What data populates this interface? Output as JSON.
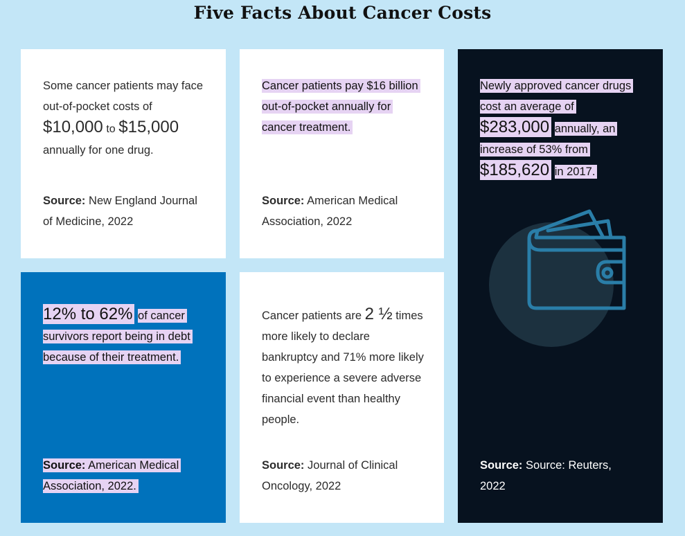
{
  "page": {
    "title": "Five Facts About Cancer Costs"
  },
  "cards": [
    {
      "text_a": "Some cancer patients may face out-of-pocket costs of",
      "amount_1": "$10,000",
      "to_word": "to",
      "amount_2": "$15,000",
      "text_b": "annually for one drug.",
      "source_label": "Source:",
      "source_text": "New England Journal of Medicine, 2022"
    },
    {
      "text": "Cancer patients pay $16 billion out-of-pocket annually for cancer treatment.",
      "source_label": "Source:",
      "source_text": "American Medical Association, 2022"
    },
    {
      "text_a": "Newly approved cancer drugs cost an average of",
      "amount_1": "$283,000",
      "text_b": "annually, an increase of 53% from",
      "amount_2": "$185,620",
      "text_c": "in 2017.",
      "source_label": "Source:",
      "source_text": "Source: Reuters, 2022",
      "icon": "wallet-icon"
    },
    {
      "big_text": "12% to 62%",
      "text": "of cancer survivors report being in debt because of their treatment.",
      "source_label": "Source:",
      "source_text": "American Medical Association, 2022."
    },
    {
      "text_a": "Cancer patients are",
      "big_text": "2 ½",
      "text_b": "times more likely to declare bankruptcy and 71% more likely to experience a severe adverse financial event than healthy people.",
      "source_label": "Source:",
      "source_text": "Journal of Clinical Oncology, 2022"
    }
  ],
  "colors": {
    "background": "#c3e6f7",
    "card_white": "#ffffff",
    "card_blue": "#0072bc",
    "card_dark": "#07121f",
    "highlight": "#e6d3f3",
    "wallet_stroke": "#2a7ea8"
  }
}
